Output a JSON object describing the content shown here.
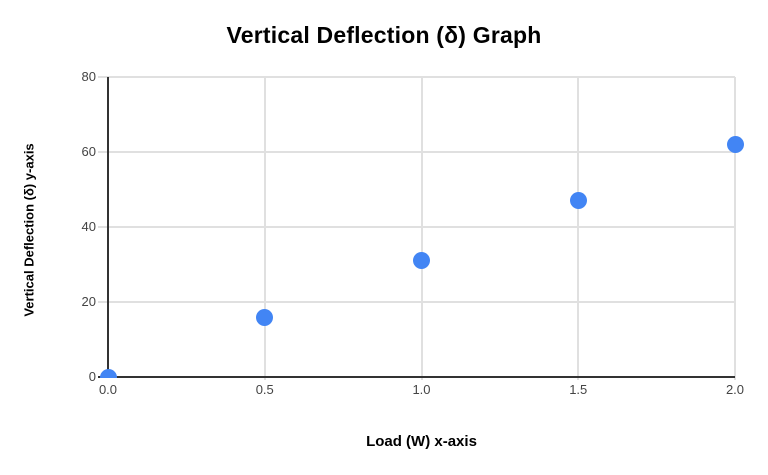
{
  "chart": {
    "title": "Vertical Deflection (δ) Graph",
    "x_axis_label": "Load (W) x-axis",
    "y_axis_label": "Vertical Deflection (δ) y-axis"
  },
  "chart_data": {
    "type": "scatter",
    "title": "Vertical Deflection (δ) Graph",
    "xlabel": "Load (W) x-axis",
    "ylabel": "Vertical Deflection (δ) y-axis",
    "x": [
      0,
      0.5,
      1.0,
      1.5,
      2.0
    ],
    "y": [
      0,
      16,
      31,
      47,
      62
    ],
    "xlim": [
      0,
      2
    ],
    "ylim": [
      0,
      80
    ],
    "x_ticks": [
      0,
      0.5,
      1.0,
      1.5,
      2.0
    ],
    "y_ticks": [
      0,
      20,
      40,
      60,
      80
    ],
    "x_tick_labels": [
      "0.0",
      "0.5",
      "1.0",
      "1.5",
      "2.0"
    ],
    "y_tick_labels": [
      "0",
      "20",
      "40",
      "60",
      "80"
    ],
    "grid": true,
    "legend": "none",
    "colors": {
      "point": "#4285f4",
      "gridline": "#e0e0e0",
      "axis_line": "#333333",
      "tick_label": "#444444",
      "title_text": "#000000"
    }
  }
}
